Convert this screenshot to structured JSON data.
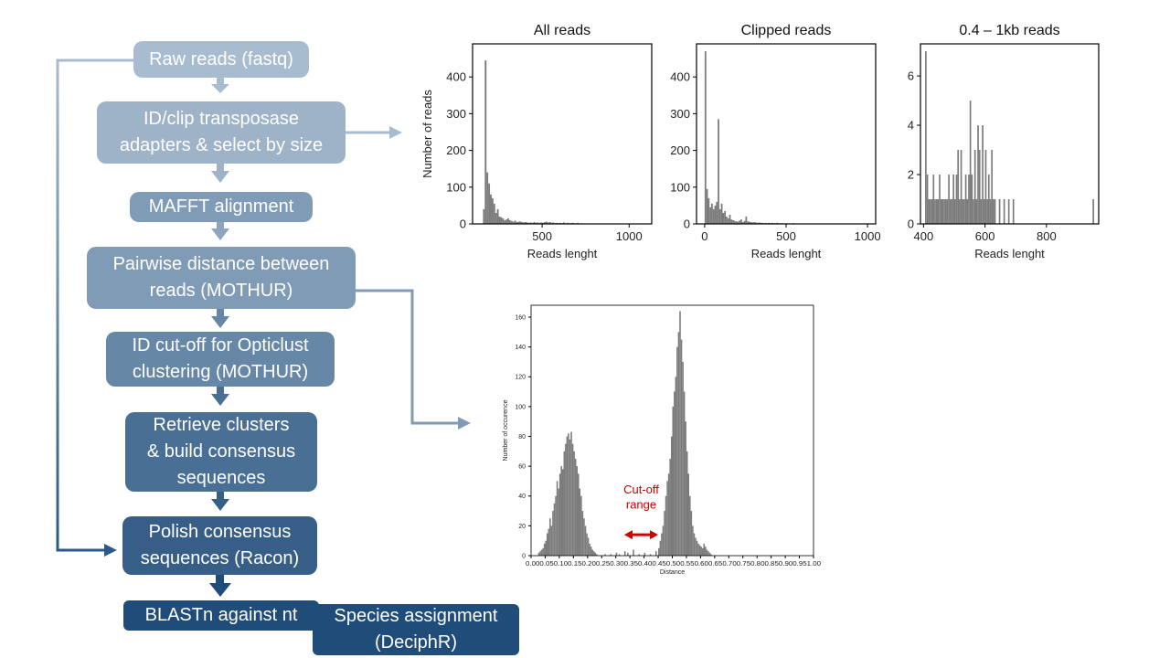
{
  "flow": {
    "steps": [
      "Raw reads (fastq)",
      "ID/clip transposase\nadapters & select by size",
      "MAFFT alignment",
      "Pairwise distance between\nreads (MOTHUR)",
      "ID cut-off for Opticlust\nclustering (MOTHUR)",
      "Retrieve clusters\n& build consensus\nsequences",
      "Polish consensus\nsequences (Racon)",
      "BLASTn against nt",
      "Species assignment\n(DeciphR)"
    ],
    "colors": [
      "#a7bccf",
      "#9eb3c8",
      "#7f9bb6",
      "#6787a6",
      "#4a6f95",
      "#375e86",
      "#1f4c78"
    ]
  },
  "chart_data": [
    {
      "type": "histogram",
      "title": "All reads",
      "xlabel": "Reads lenght",
      "ylabel": "Number of reads",
      "xlim": [
        100,
        1130
      ],
      "ylim": [
        0,
        490
      ],
      "xticks": [
        500,
        1000
      ],
      "yticks": [
        0,
        100,
        200,
        300,
        400
      ],
      "bin_width": 10,
      "bins": [
        [
          160,
          40
        ],
        [
          170,
          445
        ],
        [
          180,
          140
        ],
        [
          190,
          110
        ],
        [
          200,
          80
        ],
        [
          210,
          70
        ],
        [
          220,
          55
        ],
        [
          230,
          30
        ],
        [
          240,
          40
        ],
        [
          250,
          20
        ],
        [
          260,
          18
        ],
        [
          270,
          15
        ],
        [
          280,
          10
        ],
        [
          290,
          12
        ],
        [
          300,
          15
        ],
        [
          310,
          10
        ],
        [
          320,
          8
        ],
        [
          330,
          6
        ],
        [
          340,
          9
        ],
        [
          350,
          5
        ],
        [
          360,
          6
        ],
        [
          370,
          7
        ],
        [
          380,
          5
        ],
        [
          390,
          4
        ],
        [
          400,
          5
        ],
        [
          410,
          4
        ],
        [
          420,
          3
        ],
        [
          430,
          4
        ],
        [
          440,
          3
        ],
        [
          450,
          5
        ],
        [
          460,
          3
        ],
        [
          470,
          4
        ],
        [
          480,
          3
        ],
        [
          490,
          4
        ],
        [
          500,
          3
        ],
        [
          510,
          5
        ],
        [
          520,
          6
        ],
        [
          530,
          4
        ],
        [
          540,
          5
        ],
        [
          550,
          3
        ],
        [
          560,
          4
        ],
        [
          570,
          2
        ],
        [
          580,
          3
        ],
        [
          590,
          2
        ],
        [
          600,
          3
        ],
        [
          610,
          2
        ],
        [
          620,
          4
        ],
        [
          630,
          2
        ],
        [
          640,
          3
        ],
        [
          650,
          2
        ],
        [
          660,
          2
        ],
        [
          670,
          3
        ],
        [
          680,
          2
        ],
        [
          690,
          1
        ],
        [
          700,
          3
        ],
        [
          710,
          1
        ],
        [
          720,
          2
        ],
        [
          730,
          1
        ]
      ]
    },
    {
      "type": "histogram",
      "title": "Clipped reads",
      "xlabel": "Reads lenght",
      "ylabel": "",
      "xlim": [
        -50,
        1050
      ],
      "ylim": [
        0,
        490
      ],
      "xticks": [
        0,
        500,
        1000
      ],
      "yticks": [
        0,
        100,
        200,
        300,
        400
      ],
      "bin_width": 10,
      "bins": [
        [
          0,
          470
        ],
        [
          10,
          95
        ],
        [
          20,
          70
        ],
        [
          30,
          45
        ],
        [
          40,
          55
        ],
        [
          50,
          40
        ],
        [
          60,
          50
        ],
        [
          70,
          60
        ],
        [
          80,
          285
        ],
        [
          90,
          40
        ],
        [
          100,
          55
        ],
        [
          110,
          30
        ],
        [
          120,
          35
        ],
        [
          130,
          20
        ],
        [
          140,
          15
        ],
        [
          150,
          25
        ],
        [
          160,
          12
        ],
        [
          170,
          10
        ],
        [
          180,
          8
        ],
        [
          190,
          7
        ],
        [
          200,
          6
        ],
        [
          210,
          9
        ],
        [
          220,
          12
        ],
        [
          230,
          5
        ],
        [
          240,
          8
        ],
        [
          250,
          20
        ],
        [
          260,
          7
        ],
        [
          270,
          6
        ],
        [
          280,
          5
        ],
        [
          290,
          4
        ],
        [
          300,
          5
        ],
        [
          310,
          4
        ],
        [
          320,
          3
        ],
        [
          330,
          4
        ],
        [
          340,
          3
        ],
        [
          350,
          3
        ],
        [
          360,
          2
        ],
        [
          370,
          3
        ],
        [
          380,
          2
        ],
        [
          390,
          3
        ],
        [
          400,
          2
        ],
        [
          410,
          3
        ],
        [
          420,
          2
        ],
        [
          430,
          2
        ],
        [
          440,
          3
        ],
        [
          450,
          2
        ],
        [
          460,
          2
        ],
        [
          470,
          1
        ],
        [
          480,
          2
        ],
        [
          490,
          1
        ],
        [
          500,
          2
        ],
        [
          520,
          1
        ],
        [
          540,
          2
        ],
        [
          560,
          1
        ],
        [
          580,
          1
        ],
        [
          600,
          1
        ],
        [
          620,
          1
        ]
      ]
    },
    {
      "type": "histogram",
      "title": "0.4 – 1kb reads",
      "xlabel": "Reads lenght",
      "ylabel": "",
      "xlim": [
        390,
        970
      ],
      "ylim": [
        0,
        7.3
      ],
      "xticks": [
        400,
        600,
        800
      ],
      "yticks": [
        0,
        2,
        4,
        6
      ],
      "bin_width": 5,
      "bins": [
        [
          405,
          7
        ],
        [
          410,
          2
        ],
        [
          415,
          1
        ],
        [
          420,
          1
        ],
        [
          425,
          1
        ],
        [
          430,
          2
        ],
        [
          435,
          1
        ],
        [
          440,
          1
        ],
        [
          445,
          1
        ],
        [
          450,
          2
        ],
        [
          455,
          1
        ],
        [
          460,
          1
        ],
        [
          465,
          1
        ],
        [
          470,
          1
        ],
        [
          475,
          1
        ],
        [
          480,
          2
        ],
        [
          485,
          1
        ],
        [
          490,
          1
        ],
        [
          495,
          2
        ],
        [
          500,
          1
        ],
        [
          505,
          2
        ],
        [
          510,
          3
        ],
        [
          515,
          1
        ],
        [
          520,
          3
        ],
        [
          525,
          1
        ],
        [
          530,
          1
        ],
        [
          535,
          2
        ],
        [
          540,
          1
        ],
        [
          545,
          2
        ],
        [
          550,
          5
        ],
        [
          555,
          2
        ],
        [
          560,
          1
        ],
        [
          565,
          3
        ],
        [
          570,
          1
        ],
        [
          575,
          4
        ],
        [
          580,
          3
        ],
        [
          585,
          1
        ],
        [
          590,
          4
        ],
        [
          595,
          1
        ],
        [
          600,
          3
        ],
        [
          605,
          1
        ],
        [
          610,
          2
        ],
        [
          615,
          1
        ],
        [
          620,
          3
        ],
        [
          625,
          1
        ],
        [
          630,
          1
        ],
        [
          645,
          1
        ],
        [
          660,
          1
        ],
        [
          675,
          1
        ],
        [
          690,
          1
        ],
        [
          950,
          1
        ]
      ]
    },
    {
      "type": "histogram",
      "title": "",
      "xlabel": "Distance",
      "ylabel": "Number of occurence",
      "xlim": [
        0,
        1.0
      ],
      "ylim": [
        0,
        168
      ],
      "xtick_labels": [
        "0.00",
        "0.05",
        "0.10",
        "0.15",
        "0.20",
        "0.25",
        "0.30",
        "0.35",
        "0.40",
        "0.45",
        "0.50",
        "0.55",
        "0.60",
        "0.65",
        "0.70",
        "0.75",
        "0.80",
        "0.85",
        "0.90",
        "0.95",
        "1.00"
      ],
      "xtick_text": "0.000.050.100.150.200.250.300.350.400.450.500.550.600.650.700.750.800.850.900.951.00",
      "yticks": [
        0,
        20,
        40,
        60,
        80,
        100,
        120,
        140,
        160
      ],
      "bin_width": 0.005,
      "bins": [
        [
          0.025,
          2
        ],
        [
          0.03,
          3
        ],
        [
          0.035,
          4
        ],
        [
          0.04,
          5
        ],
        [
          0.045,
          8
        ],
        [
          0.05,
          10
        ],
        [
          0.055,
          15
        ],
        [
          0.06,
          18
        ],
        [
          0.065,
          25
        ],
        [
          0.07,
          20
        ],
        [
          0.075,
          30
        ],
        [
          0.08,
          35
        ],
        [
          0.085,
          40
        ],
        [
          0.09,
          50
        ],
        [
          0.095,
          45
        ],
        [
          0.1,
          55
        ],
        [
          0.105,
          60
        ],
        [
          0.11,
          58
        ],
        [
          0.115,
          70
        ],
        [
          0.12,
          75
        ],
        [
          0.125,
          80
        ],
        [
          0.13,
          82
        ],
        [
          0.135,
          78
        ],
        [
          0.14,
          83
        ],
        [
          0.145,
          75
        ],
        [
          0.15,
          70
        ],
        [
          0.155,
          65
        ],
        [
          0.16,
          60
        ],
        [
          0.165,
          55
        ],
        [
          0.17,
          45
        ],
        [
          0.175,
          40
        ],
        [
          0.18,
          30
        ],
        [
          0.185,
          25
        ],
        [
          0.19,
          20
        ],
        [
          0.195,
          15
        ],
        [
          0.2,
          12
        ],
        [
          0.205,
          8
        ],
        [
          0.21,
          6
        ],
        [
          0.215,
          4
        ],
        [
          0.22,
          3
        ],
        [
          0.225,
          2
        ],
        [
          0.23,
          1
        ],
        [
          0.26,
          1
        ],
        [
          0.28,
          1
        ],
        [
          0.3,
          2
        ],
        [
          0.31,
          1
        ],
        [
          0.33,
          3
        ],
        [
          0.34,
          2
        ],
        [
          0.36,
          4
        ],
        [
          0.38,
          1
        ],
        [
          0.4,
          2
        ],
        [
          0.42,
          1
        ],
        [
          0.44,
          3
        ],
        [
          0.45,
          5
        ],
        [
          0.455,
          10
        ],
        [
          0.46,
          15
        ],
        [
          0.465,
          20
        ],
        [
          0.47,
          30
        ],
        [
          0.475,
          40
        ],
        [
          0.48,
          50
        ],
        [
          0.485,
          55
        ],
        [
          0.49,
          65
        ],
        [
          0.495,
          80
        ],
        [
          0.5,
          100
        ],
        [
          0.505,
          110
        ],
        [
          0.51,
          120
        ],
        [
          0.515,
          140
        ],
        [
          0.52,
          150
        ],
        [
          0.525,
          164
        ],
        [
          0.53,
          145
        ],
        [
          0.535,
          130
        ],
        [
          0.54,
          110
        ],
        [
          0.545,
          90
        ],
        [
          0.55,
          70
        ],
        [
          0.555,
          55
        ],
        [
          0.56,
          40
        ],
        [
          0.565,
          30
        ],
        [
          0.57,
          20
        ],
        [
          0.575,
          15
        ],
        [
          0.58,
          12
        ],
        [
          0.585,
          10
        ],
        [
          0.59,
          8
        ],
        [
          0.595,
          7
        ],
        [
          0.6,
          6
        ],
        [
          0.605,
          5
        ],
        [
          0.61,
          8
        ],
        [
          0.615,
          6
        ],
        [
          0.62,
          4
        ],
        [
          0.625,
          3
        ],
        [
          0.63,
          2
        ],
        [
          0.635,
          1
        ]
      ],
      "annotation": {
        "text": "Cut-off\nrange",
        "x_range": [
          0.33,
          0.45
        ],
        "color": "#cc0000"
      }
    }
  ]
}
